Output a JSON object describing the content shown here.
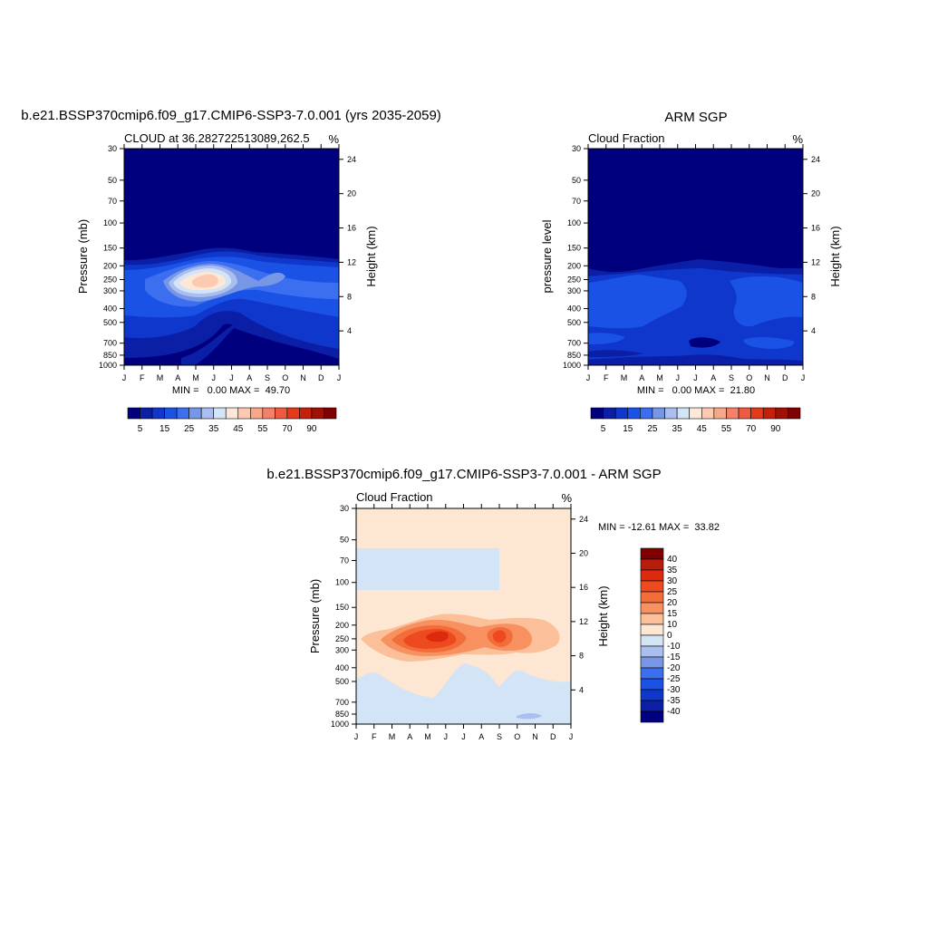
{
  "chart_data": [
    {
      "type": "heatmap",
      "title": "b.e21.BSSP370cmip6.f09_g17.CMIP6-SSP3-7.0.001 (yrs 2035-2059)",
      "subtitle": "CLOUD at 36.282722513089,262.5",
      "units": "%",
      "xlabel": "",
      "ylabel": "Pressure (mb)",
      "ylabel_right": "Height (km)",
      "x_ticks": [
        "J",
        "F",
        "M",
        "A",
        "M",
        "J",
        "J",
        "A",
        "S",
        "O",
        "N",
        "D",
        "J"
      ],
      "y_ticks": [
        "30",
        "50",
        "70",
        "100",
        "150",
        "200",
        "250",
        "300",
        "400",
        "500",
        "700",
        "850",
        "1000"
      ],
      "y_ticks_right": [
        "24",
        "20",
        "16",
        "12",
        "8",
        "4"
      ],
      "stats": "MIN =   0.00 MAX =  49.70",
      "min": 0.0,
      "max": 49.7,
      "colorbar_labels": [
        "5",
        "15",
        "25",
        "35",
        "45",
        "55",
        "70",
        "90"
      ],
      "colorbar_levels": [
        0,
        5,
        10,
        15,
        20,
        25,
        30,
        35,
        40,
        45,
        50,
        55,
        60,
        70,
        80,
        90,
        100
      ]
    },
    {
      "type": "heatmap",
      "title": "ARM SGP",
      "subtitle": "Cloud Fraction",
      "units": "%",
      "xlabel": "",
      "ylabel": "pressure level",
      "ylabel_right": "Height (km)",
      "x_ticks": [
        "J",
        "F",
        "M",
        "A",
        "M",
        "J",
        "J",
        "A",
        "S",
        "O",
        "N",
        "D",
        "J"
      ],
      "y_ticks": [
        "30",
        "50",
        "70",
        "100",
        "150",
        "200",
        "250",
        "300",
        "400",
        "500",
        "700",
        "850",
        "1000"
      ],
      "y_ticks_right": [
        "24",
        "20",
        "16",
        "12",
        "8",
        "4"
      ],
      "stats": "MIN =   0.00 MAX =  21.80",
      "min": 0.0,
      "max": 21.8,
      "colorbar_labels": [
        "5",
        "15",
        "25",
        "35",
        "45",
        "55",
        "70",
        "90"
      ],
      "colorbar_levels": [
        0,
        5,
        10,
        15,
        20,
        25,
        30,
        35,
        40,
        45,
        50,
        55,
        60,
        70,
        80,
        90,
        100
      ]
    },
    {
      "type": "heatmap",
      "title": "b.e21.BSSP370cmip6.f09_g17.CMIP6-SSP3-7.0.001 - ARM SGP",
      "subtitle": "Cloud Fraction",
      "units": "%",
      "xlabel": "",
      "ylabel": "Pressure (mb)",
      "ylabel_right": "Height (km)",
      "x_ticks": [
        "J",
        "F",
        "M",
        "A",
        "M",
        "J",
        "J",
        "A",
        "S",
        "O",
        "N",
        "D",
        "J"
      ],
      "y_ticks": [
        "30",
        "50",
        "70",
        "100",
        "150",
        "200",
        "250",
        "300",
        "400",
        "500",
        "700",
        "850",
        "1000"
      ],
      "y_ticks_right": [
        "24",
        "20",
        "16",
        "12",
        "8",
        "4"
      ],
      "stats": "MIN = -12.61 MAX =  33.82",
      "min": -12.61,
      "max": 33.82,
      "colorbar_labels": [
        "40",
        "35",
        "30",
        "25",
        "20",
        "15",
        "10",
        "0",
        "-10",
        "-15",
        "-20",
        "-25",
        "-30",
        "-35",
        "-40"
      ],
      "colorbar_levels": [
        -40,
        -35,
        -30,
        -25,
        -20,
        -15,
        -10,
        0,
        10,
        15,
        20,
        25,
        30,
        35,
        40
      ]
    }
  ],
  "colors": {
    "model_colorbar": [
      "#00007f",
      "#0a1fa6",
      "#0f37cc",
      "#1a52e6",
      "#3c6ff0",
      "#7896e6",
      "#aabef0",
      "#d2e4f5",
      "#fde8d8",
      "#fbcab0",
      "#f8a88a",
      "#f4826a",
      "#ee5a40",
      "#e43a1a",
      "#c4200a",
      "#a01005",
      "#800000"
    ],
    "diff_colorbar": [
      "#800000",
      "#b81c0a",
      "#dd2a0e",
      "#ed4a1f",
      "#f36d3b",
      "#f79260",
      "#fbbf9a",
      "#fde6d2",
      "#d2e4f5",
      "#aabef0",
      "#7896e6",
      "#3c6ff0",
      "#1a52e6",
      "#0f37cc",
      "#0a1fa6",
      "#00007f"
    ]
  }
}
